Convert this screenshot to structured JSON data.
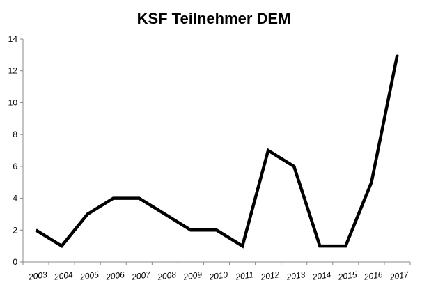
{
  "chart_data": {
    "type": "line",
    "title": "KSF Teilnehmer DEM",
    "xlabel": "",
    "ylabel": "",
    "categories": [
      "2003",
      "2004",
      "2005",
      "2006",
      "2007",
      "2008",
      "2009",
      "2010",
      "2011",
      "2012",
      "2013",
      "2014",
      "2015",
      "2016",
      "2017"
    ],
    "series": [
      {
        "values": [
          2,
          1,
          3,
          4,
          4,
          3,
          2,
          2,
          1,
          7,
          6,
          1,
          1,
          5,
          13
        ]
      }
    ],
    "ylim": [
      0,
      14
    ],
    "yticks": [
      "0",
      "2",
      "4",
      "6",
      "8",
      "10",
      "12",
      "14"
    ],
    "grid": false,
    "legend": "none",
    "colors": {
      "line": "#000000",
      "axis": "#888888"
    }
  }
}
